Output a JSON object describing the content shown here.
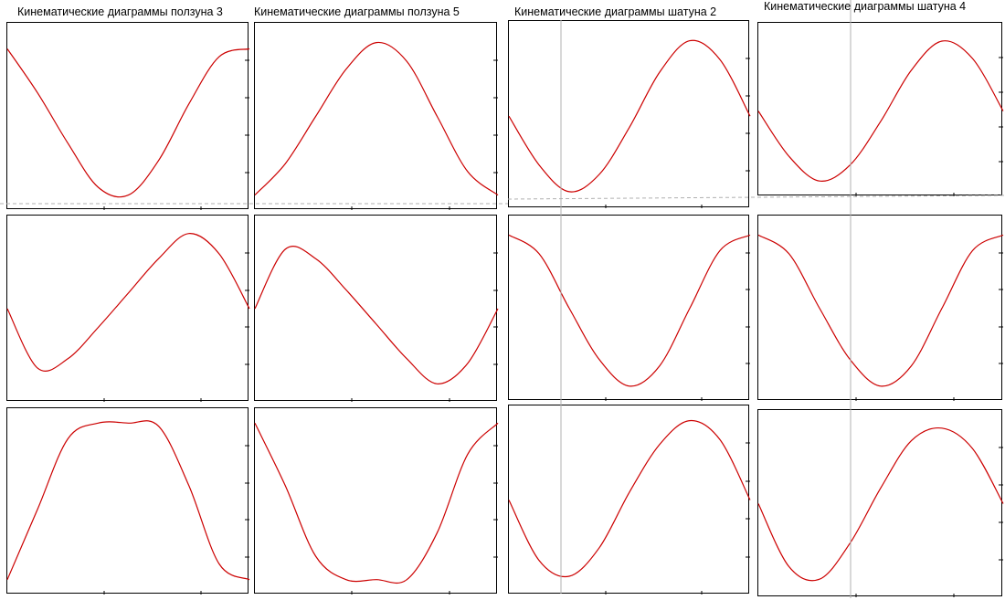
{
  "columns": [
    {
      "title": "Кинематические диаграммы ползуна 3"
    },
    {
      "title": "Кинематические диаграммы ползуна 5"
    },
    {
      "title": "Кинематические диаграммы шатуна 2"
    },
    {
      "title": "Кинематические диаграммы шатуна 4"
    }
  ],
  "colors": {
    "curve": "#cc0000",
    "frame": "#000000",
    "guide": "#aaaaaa"
  },
  "chart_data": [
    {
      "type": "line",
      "title": "",
      "y": [
        0.93,
        0.65,
        0.33,
        0.05,
        0.0,
        0.22,
        0.58,
        0.88,
        0.93
      ],
      "x": [
        0,
        0.125,
        0.25,
        0.375,
        0.5,
        0.625,
        0.75,
        0.875,
        1.0
      ],
      "xlabel": "",
      "ylabel": ""
    },
    {
      "type": "line",
      "title": "",
      "y": [
        0.0,
        0.2,
        0.5,
        0.8,
        0.97,
        0.85,
        0.5,
        0.15,
        0.0
      ],
      "x": [
        0,
        0.125,
        0.25,
        0.375,
        0.5,
        0.625,
        0.75,
        0.875,
        1.0
      ],
      "xlabel": "",
      "ylabel": ""
    },
    {
      "type": "line",
      "title": "",
      "y": [
        0.49,
        0.18,
        0.01,
        0.12,
        0.42,
        0.77,
        0.97,
        0.85,
        0.49
      ],
      "x": [
        0,
        0.125,
        0.25,
        0.375,
        0.5,
        0.625,
        0.75,
        0.875,
        1.0
      ],
      "xlabel": "",
      "ylabel": ""
    },
    {
      "type": "line",
      "title": "",
      "y": [
        0.49,
        0.18,
        0.01,
        0.12,
        0.42,
        0.77,
        0.97,
        0.85,
        0.49
      ],
      "x": [
        0,
        0.125,
        0.25,
        0.375,
        0.5,
        0.625,
        0.75,
        0.875,
        1.0
      ],
      "xlabel": "",
      "ylabel": ""
    },
    {
      "type": "line",
      "title": "",
      "y": [
        0.5,
        0.12,
        0.18,
        0.38,
        0.6,
        0.82,
        0.98,
        0.85,
        0.5
      ],
      "x": [
        0,
        0.125,
        0.25,
        0.375,
        0.5,
        0.625,
        0.75,
        0.875,
        1.0
      ],
      "xlabel": "",
      "ylabel": ""
    },
    {
      "type": "line",
      "title": "",
      "y": [
        0.5,
        0.88,
        0.82,
        0.62,
        0.4,
        0.18,
        0.02,
        0.15,
        0.5
      ],
      "x": [
        0,
        0.125,
        0.25,
        0.375,
        0.5,
        0.625,
        0.75,
        0.875,
        1.0
      ],
      "xlabel": "",
      "ylabel": ""
    },
    {
      "type": "line",
      "title": "",
      "y": [
        0.97,
        0.85,
        0.5,
        0.17,
        0.0,
        0.13,
        0.5,
        0.87,
        0.97
      ],
      "x": [
        0,
        0.125,
        0.25,
        0.375,
        0.5,
        0.625,
        0.75,
        0.875,
        1.0
      ],
      "xlabel": "",
      "ylabel": ""
    },
    {
      "type": "line",
      "title": "",
      "y": [
        0.97,
        0.85,
        0.5,
        0.17,
        0.0,
        0.13,
        0.5,
        0.87,
        0.97
      ],
      "x": [
        0,
        0.125,
        0.25,
        0.375,
        0.5,
        0.625,
        0.75,
        0.875,
        1.0
      ],
      "xlabel": "",
      "ylabel": ""
    },
    {
      "type": "line",
      "title": "",
      "y": [
        0.0,
        0.45,
        0.9,
        1.0,
        1.0,
        0.98,
        0.6,
        0.1,
        0.0
      ],
      "x": [
        0,
        0.125,
        0.25,
        0.375,
        0.5,
        0.625,
        0.75,
        0.875,
        1.0
      ],
      "xlabel": "",
      "ylabel": ""
    },
    {
      "type": "line",
      "title": "",
      "y": [
        1.0,
        0.6,
        0.15,
        0.0,
        0.0,
        0.0,
        0.3,
        0.8,
        1.0
      ],
      "x": [
        0,
        0.125,
        0.25,
        0.375,
        0.5,
        0.625,
        0.75,
        0.875,
        1.0
      ],
      "xlabel": "",
      "ylabel": ""
    },
    {
      "type": "line",
      "title": "",
      "y": [
        0.5,
        0.12,
        0.02,
        0.2,
        0.55,
        0.85,
        1.0,
        0.88,
        0.5
      ],
      "x": [
        0,
        0.125,
        0.25,
        0.375,
        0.5,
        0.625,
        0.75,
        0.875,
        1.0
      ],
      "xlabel": "",
      "ylabel": ""
    },
    {
      "type": "line",
      "title": "",
      "y": [
        0.5,
        0.1,
        0.02,
        0.25,
        0.6,
        0.9,
        0.98,
        0.85,
        0.5
      ],
      "x": [
        0,
        0.125,
        0.25,
        0.375,
        0.5,
        0.625,
        0.75,
        0.875,
        1.0
      ],
      "xlabel": "",
      "ylabel": ""
    }
  ]
}
